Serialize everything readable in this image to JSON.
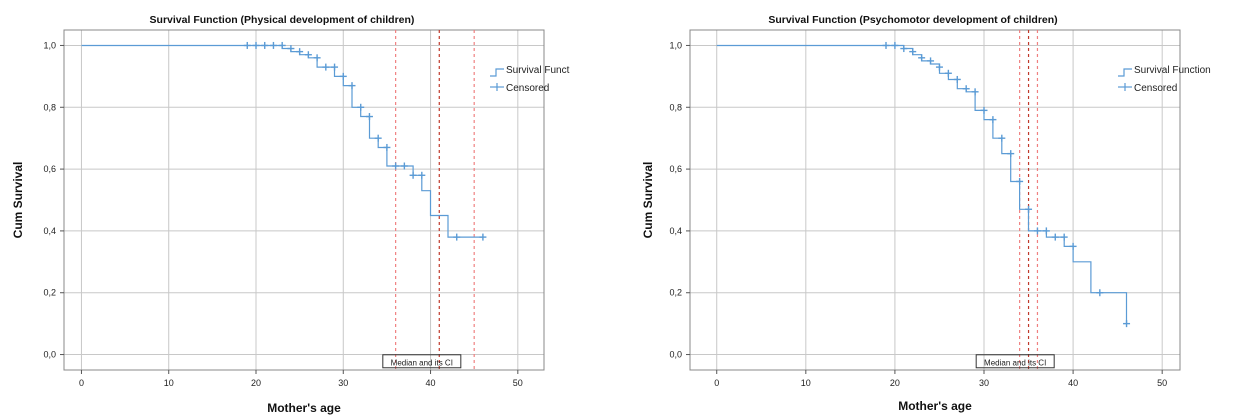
{
  "chart_data": [
    {
      "type": "line",
      "title": "Survival Function (Physical development of children)",
      "xlabel": "Mother's age",
      "ylabel": "Cum Survival",
      "xlim": [
        -2,
        53
      ],
      "ylim": [
        -0.05,
        1.05
      ],
      "x_ticks": [
        0,
        10,
        20,
        30,
        40,
        50
      ],
      "x_tick_labels": [
        "0",
        "10",
        "20",
        "30",
        "40",
        "50"
      ],
      "y_ticks": [
        0,
        0.2,
        0.4,
        0.6,
        0.8,
        1.0
      ],
      "y_tick_labels": [
        "0,0",
        "0,2",
        "0,4",
        "0,6",
        "0,8",
        "1,0"
      ],
      "grid": true,
      "legend_position": "top-right",
      "legend": [
        "Survival Funct",
        "Censored"
      ],
      "series": [
        {
          "name": "Survival Funct",
          "kind": "step",
          "color": "#5b9bd5",
          "points": [
            [
              0,
              1.0
            ],
            [
              23,
              1.0
            ],
            [
              23,
              0.99
            ],
            [
              24,
              0.99
            ],
            [
              24,
              0.98
            ],
            [
              25,
              0.98
            ],
            [
              25,
              0.97
            ],
            [
              26,
              0.97
            ],
            [
              26,
              0.96
            ],
            [
              27,
              0.96
            ],
            [
              27,
              0.93
            ],
            [
              29,
              0.93
            ],
            [
              29,
              0.9
            ],
            [
              30,
              0.9
            ],
            [
              30,
              0.87
            ],
            [
              31,
              0.87
            ],
            [
              31,
              0.8
            ],
            [
              32,
              0.8
            ],
            [
              32,
              0.77
            ],
            [
              33,
              0.77
            ],
            [
              33,
              0.7
            ],
            [
              34,
              0.7
            ],
            [
              34,
              0.67
            ],
            [
              35,
              0.67
            ],
            [
              35,
              0.61
            ],
            [
              38,
              0.61
            ],
            [
              38,
              0.58
            ],
            [
              39,
              0.58
            ],
            [
              39,
              0.53
            ],
            [
              40,
              0.53
            ],
            [
              40,
              0.45
            ],
            [
              42,
              0.45
            ],
            [
              42,
              0.38
            ],
            [
              46,
              0.38
            ]
          ]
        },
        {
          "name": "Censored",
          "kind": "marker",
          "color": "#5b9bd5",
          "points": [
            [
              19,
              1.0
            ],
            [
              20,
              1.0
            ],
            [
              21,
              1.0
            ],
            [
              22,
              1.0
            ],
            [
              23,
              1.0
            ],
            [
              24,
              0.99
            ],
            [
              25,
              0.98
            ],
            [
              26,
              0.97
            ],
            [
              27,
              0.96
            ],
            [
              28,
              0.93
            ],
            [
              29,
              0.93
            ],
            [
              30,
              0.9
            ],
            [
              31,
              0.87
            ],
            [
              32,
              0.8
            ],
            [
              33,
              0.77
            ],
            [
              34,
              0.7
            ],
            [
              35,
              0.67
            ],
            [
              36,
              0.61
            ],
            [
              37,
              0.61
            ],
            [
              38,
              0.58
            ],
            [
              39,
              0.58
            ],
            [
              43,
              0.38
            ],
            [
              46,
              0.38
            ]
          ]
        }
      ],
      "reference_lines": [
        {
          "x": 36,
          "color": "#f08080",
          "style": "dotted"
        },
        {
          "x": 41,
          "color": "#c0392b",
          "style": "dotted"
        },
        {
          "x": 45,
          "color": "#f08080",
          "style": "dotted"
        }
      ],
      "annotation": {
        "text": "Median and its CI",
        "x": 39,
        "y": -0.025
      }
    },
    {
      "type": "line",
      "title": "Survival Function (Psychomotor development of children)",
      "xlabel": "Mother's age",
      "ylabel": "Cum Survival",
      "xlim": [
        -3,
        52
      ],
      "ylim": [
        -0.05,
        1.05
      ],
      "x_ticks": [
        0,
        10,
        20,
        30,
        40,
        50
      ],
      "x_tick_labels": [
        "0",
        "10",
        "20",
        "30",
        "40",
        "50"
      ],
      "y_ticks": [
        0,
        0.2,
        0.4,
        0.6,
        0.8,
        1.0
      ],
      "y_tick_labels": [
        "0,0",
        "0,2",
        "0,4",
        "0,6",
        "0,8",
        "1,0"
      ],
      "grid": true,
      "legend_position": "top-right",
      "legend": [
        "Survival Function",
        "Censored"
      ],
      "series": [
        {
          "name": "Survival Function",
          "kind": "step",
          "color": "#5b9bd5",
          "points": [
            [
              0,
              1.0
            ],
            [
              21,
              1.0
            ],
            [
              21,
              0.99
            ],
            [
              22,
              0.99
            ],
            [
              22,
              0.97
            ],
            [
              23,
              0.97
            ],
            [
              23,
              0.95
            ],
            [
              24,
              0.95
            ],
            [
              24,
              0.94
            ],
            [
              25,
              0.94
            ],
            [
              25,
              0.91
            ],
            [
              26,
              0.91
            ],
            [
              26,
              0.89
            ],
            [
              27,
              0.89
            ],
            [
              27,
              0.86
            ],
            [
              28,
              0.86
            ],
            [
              28,
              0.85
            ],
            [
              29,
              0.85
            ],
            [
              29,
              0.79
            ],
            [
              30,
              0.79
            ],
            [
              30,
              0.76
            ],
            [
              31,
              0.76
            ],
            [
              31,
              0.7
            ],
            [
              32,
              0.7
            ],
            [
              32,
              0.65
            ],
            [
              33,
              0.65
            ],
            [
              33,
              0.56
            ],
            [
              34,
              0.56
            ],
            [
              34,
              0.47
            ],
            [
              35,
              0.47
            ],
            [
              35,
              0.4
            ],
            [
              37,
              0.4
            ],
            [
              37,
              0.38
            ],
            [
              39,
              0.38
            ],
            [
              39,
              0.35
            ],
            [
              40,
              0.35
            ],
            [
              40,
              0.3
            ],
            [
              42,
              0.3
            ],
            [
              42,
              0.2
            ],
            [
              46,
              0.2
            ],
            [
              46,
              0.1
            ]
          ]
        },
        {
          "name": "Censored",
          "kind": "marker",
          "color": "#5b9bd5",
          "points": [
            [
              19,
              1.0
            ],
            [
              20,
              1.0
            ],
            [
              21,
              0.99
            ],
            [
              22,
              0.98
            ],
            [
              23,
              0.96
            ],
            [
              24,
              0.95
            ],
            [
              25,
              0.93
            ],
            [
              26,
              0.91
            ],
            [
              27,
              0.89
            ],
            [
              28,
              0.86
            ],
            [
              29,
              0.85
            ],
            [
              30,
              0.79
            ],
            [
              31,
              0.76
            ],
            [
              32,
              0.7
            ],
            [
              33,
              0.65
            ],
            [
              34,
              0.56
            ],
            [
              35,
              0.47
            ],
            [
              36,
              0.4
            ],
            [
              37,
              0.4
            ],
            [
              38,
              0.38
            ],
            [
              39,
              0.38
            ],
            [
              40,
              0.35
            ],
            [
              43,
              0.2
            ],
            [
              46,
              0.1
            ]
          ]
        }
      ],
      "reference_lines": [
        {
          "x": 34,
          "color": "#f08080",
          "style": "dotted"
        },
        {
          "x": 35,
          "color": "#c0392b",
          "style": "dotted"
        },
        {
          "x": 36,
          "color": "#f08080",
          "style": "dotted"
        }
      ],
      "annotation": {
        "text": "Median and its CI",
        "x": 33.5,
        "y": -0.025
      }
    }
  ]
}
